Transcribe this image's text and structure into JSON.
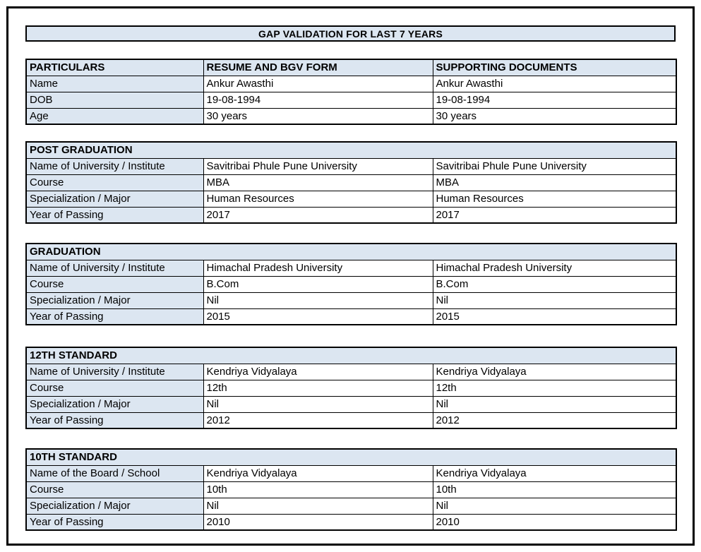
{
  "title": "GAP VALIDATION FOR LAST 7 YEARS",
  "colors": {
    "accent": "#dce6f1",
    "border": "#000000",
    "text": "#000000",
    "background": "#ffffff"
  },
  "particulars_table": {
    "headers": [
      "PARTICULARS",
      "RESUME AND BGV FORM",
      "SUPPORTING DOCUMENTS"
    ],
    "rows": [
      {
        "label": "Name",
        "resume": "Ankur Awasthi",
        "documents": "Ankur Awasthi"
      },
      {
        "label": "DOB",
        "resume": "19-08-1994",
        "documents": "19-08-1994"
      },
      {
        "label": "Age",
        "resume": "30 years",
        "documents": "30 years"
      }
    ]
  },
  "sections": [
    {
      "title": "POST GRADUATION",
      "rows": [
        {
          "label": "Name of University / Institute",
          "resume": "Savitribai Phule Pune University",
          "documents": "Savitribai Phule Pune University"
        },
        {
          "label": "Course",
          "resume": "MBA",
          "documents": "MBA"
        },
        {
          "label": "Specialization / Major",
          "resume": "Human Resources",
          "documents": "Human Resources"
        },
        {
          "label": "Year of Passing",
          "resume": "2017",
          "documents": "2017"
        }
      ]
    },
    {
      "title": "GRADUATION",
      "rows": [
        {
          "label": "Name of University / Institute",
          "resume": "Himachal Pradesh University",
          "documents": "Himachal Pradesh University"
        },
        {
          "label": "Course",
          "resume": "B.Com",
          "documents": "B.Com"
        },
        {
          "label": "Specialization / Major",
          "resume": "Nil",
          "documents": "Nil"
        },
        {
          "label": "Year of Passing",
          "resume": "2015",
          "documents": "2015"
        }
      ]
    },
    {
      "title": "12TH STANDARD",
      "rows": [
        {
          "label": "Name of University / Institute",
          "resume": "Kendriya Vidyalaya",
          "documents": "Kendriya Vidyalaya"
        },
        {
          "label": "Course",
          "resume": "12th",
          "documents": "12th"
        },
        {
          "label": "Specialization / Major",
          "resume": "Nil",
          "documents": "Nil"
        },
        {
          "label": "Year of Passing",
          "resume": "2012",
          "documents": "2012"
        }
      ]
    },
    {
      "title": "10TH STANDARD",
      "rows": [
        {
          "label": "Name of the Board / School",
          "resume": "Kendriya Vidyalaya",
          "documents": "Kendriya Vidyalaya"
        },
        {
          "label": "Course",
          "resume": "10th",
          "documents": "10th"
        },
        {
          "label": "Specialization / Major",
          "resume": "Nil",
          "documents": "Nil"
        },
        {
          "label": "Year of Passing",
          "resume": "2010",
          "documents": "2010"
        }
      ]
    }
  ]
}
